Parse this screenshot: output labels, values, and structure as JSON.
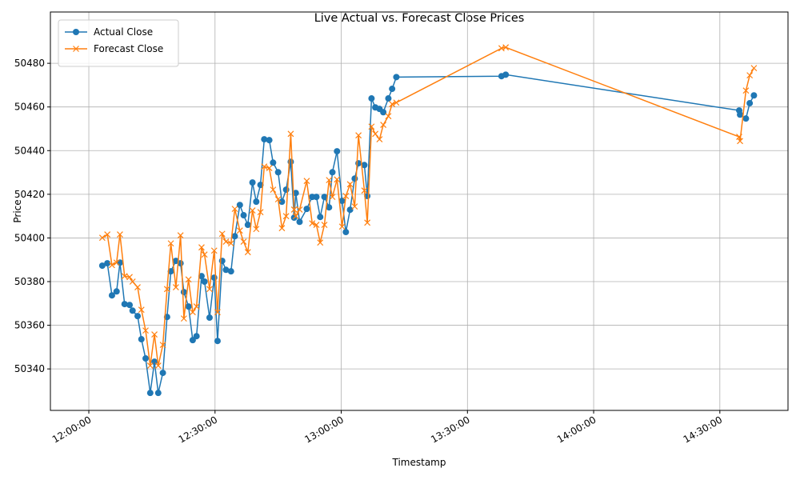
{
  "chart_data": {
    "type": "line",
    "title": "Live Actual vs. Forecast Close Prices",
    "x_label": "Timestamp",
    "y_label": "Price",
    "x": [
      "12:03:12",
      "12:04:24",
      "12:05:30",
      "12:06:36",
      "12:07:24",
      "12:08:30",
      "12:09:42",
      "12:10:24",
      "12:11:36",
      "12:12:30",
      "12:13:30",
      "12:14:36",
      "12:15:36",
      "12:16:30",
      "12:17:36",
      "12:18:36",
      "12:19:30",
      "12:20:42",
      "12:21:48",
      "12:22:36",
      "12:23:42",
      "12:24:42",
      "12:25:36",
      "12:26:48",
      "12:27:30",
      "12:28:42",
      "12:29:48",
      "12:30:36",
      "12:31:42",
      "12:32:36",
      "12:33:48",
      "12:34:42",
      "12:35:54",
      "12:36:48",
      "12:37:48",
      "12:38:54",
      "12:39:48",
      "12:40:48",
      "12:41:42",
      "12:42:54",
      "12:43:48",
      "12:45:00",
      "12:45:54",
      "12:46:54",
      "12:48:00",
      "12:48:48",
      "12:49:12",
      "12:50:06",
      "12:51:48",
      "12:53:06",
      "12:54:06",
      "12:55:00",
      "12:56:00",
      "12:57:06",
      "12:57:54",
      "12:59:00",
      "13:00:12",
      "13:01:06",
      "13:02:06",
      "13:03:12",
      "13:04:06",
      "13:05:30",
      "13:06:12",
      "13:07:12",
      "13:08:06",
      "13:09:06",
      "13:10:00",
      "13:11:12",
      "13:12:06",
      "13:13:06",
      "13:38:06",
      "13:39:06",
      "14:34:36",
      "14:34:48",
      "14:36:12",
      "14:37:06",
      "14:38:06"
    ],
    "series": [
      {
        "name": "Actual Close",
        "color": "#1f77b4",
        "marker": "o",
        "values": [
          50387.3,
          50388.4,
          50373.7,
          50375.5,
          50388.7,
          50369.7,
          50369.3,
          50366.7,
          50364.2,
          50353.6,
          50344.8,
          50329,
          50343.3,
          50329,
          50338.2,
          50363.8,
          50384.7,
          50389.5,
          50388.4,
          50375.2,
          50368.6,
          50353.2,
          50355,
          50382.5,
          50380,
          50363.5,
          50381.8,
          50352.8,
          50389.5,
          50385.4,
          50384.7,
          50400.8,
          50415.1,
          50410.4,
          50406,
          50425.4,
          50416.6,
          50424.3,
          50445.2,
          50444.8,
          50434.5,
          50430.1,
          50416.6,
          50422.1,
          50434.9,
          50409.3,
          50420.6,
          50407.4,
          50413.3,
          50418.8,
          50418.8,
          50409.6,
          50418.8,
          50414,
          50430.1,
          50439.7,
          50417,
          50402.7,
          50412.9,
          50427.2,
          50434.2,
          50433.4,
          50419.2,
          50463.9,
          50459.8,
          50459.1,
          50457.6,
          50463.9,
          50468.3,
          50473.7,
          50474.1,
          50474.8,
          50458.4,
          50456.5,
          50454.7,
          50461.7,
          50465.3
        ]
      },
      {
        "name": "Forecast Close",
        "color": "#ff7f0e",
        "marker": "x",
        "values": [
          50400.1,
          50401.6,
          50387.6,
          50388.7,
          50401.6,
          50382.5,
          50382.1,
          50380,
          50377.4,
          50367.1,
          50357.6,
          50341.5,
          50355.8,
          50341.5,
          50351,
          50376.6,
          50397.5,
          50377.4,
          50401.2,
          50363.1,
          50381,
          50366,
          50368.6,
          50395.7,
          50392.4,
          50376.6,
          50394.2,
          50366,
          50401.9,
          50398.3,
          50397.5,
          50413.3,
          50403.4,
          50398.3,
          50393.5,
          50412.6,
          50404.1,
          50411.8,
          50432.7,
          50432,
          50422.1,
          50417.7,
          50404.5,
          50410,
          50447.7,
          50413,
          50410,
          50413,
          50426.1,
          50406.7,
          50406,
          50397.9,
          50406,
          50426.5,
          50418.8,
          50426.8,
          50405.2,
          50419.2,
          50424.6,
          50414.4,
          50447,
          50421.7,
          50407,
          50451,
          50447.7,
          50445.2,
          50451.8,
          50455.8,
          50461.3,
          50462,
          50486.9,
          50487.3,
          50446.3,
          50444.4,
          50467.5,
          50474.5,
          50477.8
        ]
      }
    ],
    "xlim": [
      "11:50:52",
      "14:46:12"
    ],
    "xticks": [
      "12:00:00",
      "12:30:00",
      "13:00:00",
      "13:30:00",
      "14:00:00",
      "14:30:00"
    ],
    "ylim": [
      50321,
      50503.5
    ],
    "yticks": [
      50340,
      50360,
      50380,
      50400,
      50420,
      50440,
      50460,
      50480
    ],
    "grid": true,
    "legend": "upper-left"
  }
}
